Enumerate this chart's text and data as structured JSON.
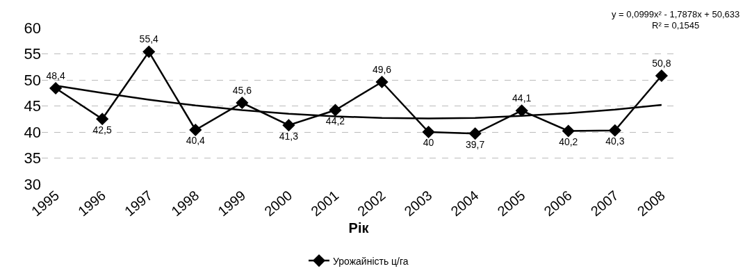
{
  "chart_data": {
    "type": "line",
    "xlabel": "Рік",
    "categories": [
      "1995",
      "1996",
      "1997",
      "1998",
      "1999",
      "2000",
      "2001",
      "2002",
      "2003",
      "2004",
      "2005",
      "2006",
      "2007",
      "2008"
    ],
    "series": [
      {
        "name": "Урожайність ц/га",
        "color": "#000000",
        "marker": "diamond",
        "values": [
          48.4,
          42.5,
          55.4,
          40.4,
          45.6,
          41.3,
          44.2,
          49.6,
          40,
          39.7,
          44.1,
          40.2,
          40.3,
          50.8
        ],
        "value_labels": [
          "48,4",
          "42,5",
          "55,4",
          "40,4",
          "45,6",
          "41,3",
          "44,2",
          "49,6",
          "40",
          "39,7",
          "44,1",
          "40,2",
          "40,3",
          "50,8"
        ]
      },
      {
        "color": "#000000",
        "marker": "none",
        "values": [
          48.9,
          47.5,
          46.2,
          45.1,
          44.2,
          43.5,
          43.0,
          42.7,
          42.6,
          42.7,
          43.1,
          43.6,
          44.3,
          45.2
        ]
      }
    ],
    "annotations": [
      "y = 0,0999x² - 1,7878x + 50,633",
      "R² = 0,1545"
    ],
    "ylim": [
      30,
      60
    ],
    "yticks": [
      30,
      35,
      40,
      45,
      50,
      55,
      60
    ],
    "grid": "y",
    "legend": "bottom"
  }
}
